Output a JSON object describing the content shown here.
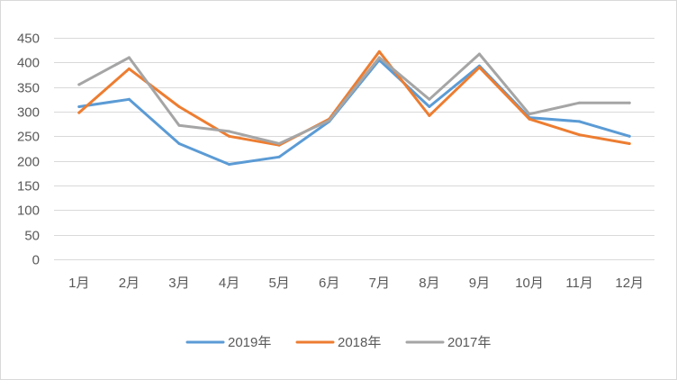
{
  "chart_data": {
    "type": "line",
    "categories": [
      "1月",
      "2月",
      "3月",
      "4月",
      "5月",
      "6月",
      "7月",
      "8月",
      "9月",
      "10月",
      "11月",
      "12月"
    ],
    "ylim": [
      0,
      450
    ],
    "yticks": [
      0,
      50,
      100,
      150,
      200,
      250,
      300,
      350,
      400,
      450
    ],
    "grid": true,
    "legend": "bottom",
    "series": [
      {
        "name": "2019年",
        "color": "#5B9BD5",
        "values": [
          310,
          325,
          235,
          193,
          208,
          280,
          405,
          310,
          393,
          288,
          280,
          250
        ]
      },
      {
        "name": "2018年",
        "color": "#ED7D31",
        "values": [
          298,
          387,
          310,
          250,
          232,
          285,
          422,
          292,
          390,
          285,
          253,
          235
        ]
      },
      {
        "name": "2017年",
        "color": "#A5A5A5",
        "values": [
          355,
          410,
          272,
          260,
          235,
          282,
          410,
          325,
          417,
          295,
          318,
          318
        ]
      }
    ]
  }
}
